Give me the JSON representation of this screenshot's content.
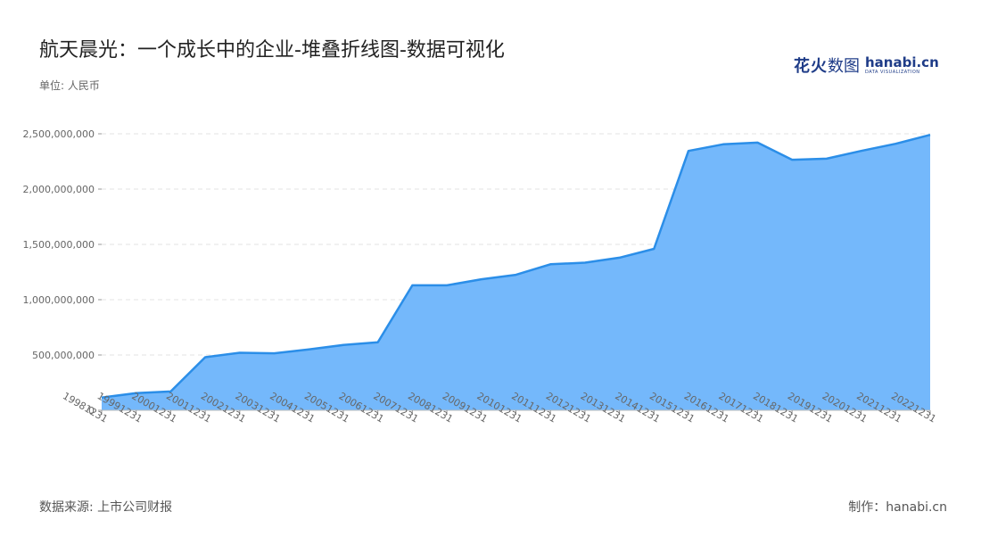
{
  "header": {
    "title": "航天晨光：一个成长中的企业-堆叠折线图-数据可视化",
    "unit": "单位: 人民币"
  },
  "brand": {
    "cn_main": "花火",
    "cn_sub": "数图",
    "en_main": "hanabi.cn",
    "en_sub": "DATA VISUALIZATION"
  },
  "footer": {
    "source": "数据来源: 上市公司财报",
    "maker": "制作：hanabi.cn"
  },
  "colors": {
    "fill": "#74b8fb",
    "line": "#2b8ee8",
    "grid": "#e3e3e3"
  },
  "chart_data": {
    "type": "area",
    "categories": [
      "19981231",
      "19991231",
      "20001231",
      "20011231",
      "20021231",
      "20031231",
      "20041231",
      "20051231",
      "20061231",
      "20071231",
      "20081231",
      "20091231",
      "20101231",
      "20111231",
      "20121231",
      "20131231",
      "20141231",
      "20151231",
      "20161231",
      "20171231",
      "20181231",
      "20191231",
      "20201231",
      "20211231",
      "20221231"
    ],
    "series": [
      {
        "values": [
          115000000,
          155000000,
          170000000,
          480000000,
          520000000,
          515000000,
          550000000,
          590000000,
          615000000,
          1130000000,
          1130000000,
          1185000000,
          1225000000,
          1320000000,
          1335000000,
          1380000000,
          1460000000,
          2345000000,
          2405000000,
          2420000000,
          2265000000,
          2275000000,
          2345000000,
          2410000000,
          2490000000
        ]
      }
    ],
    "y_ticks": [
      "0",
      "500,000,000",
      "1,000,000,000",
      "1,500,000,000",
      "2,000,000,000",
      "2,500,000,000"
    ],
    "ylim": [
      0,
      2500000000
    ],
    "grid": true,
    "legend": "none"
  }
}
